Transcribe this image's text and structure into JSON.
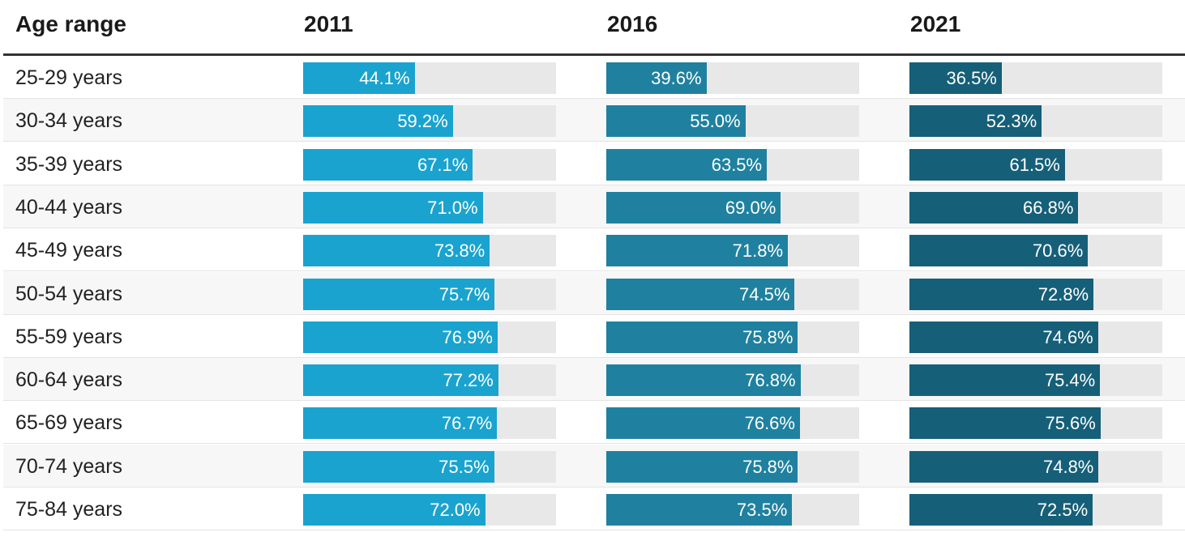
{
  "table": {
    "headers": {
      "age": "Age range",
      "years": [
        "2011",
        "2016",
        "2021"
      ]
    }
  },
  "chart_data": {
    "type": "table",
    "columns": [
      "Age range",
      "2011",
      "2016",
      "2021"
    ],
    "colors": [
      "#1aa3cf",
      "#1f819f",
      "#165f78"
    ],
    "track_color": "#e8e8e8",
    "xlim": [
      0,
      100
    ],
    "rows": [
      {
        "age": "25-29 years",
        "values": [
          44.1,
          39.6,
          36.5
        ],
        "labels": [
          "44.1%",
          "39.6%",
          "36.5%"
        ]
      },
      {
        "age": "30-34 years",
        "values": [
          59.2,
          55.0,
          52.3
        ],
        "labels": [
          "59.2%",
          "55.0%",
          "52.3%"
        ]
      },
      {
        "age": "35-39 years",
        "values": [
          67.1,
          63.5,
          61.5
        ],
        "labels": [
          "67.1%",
          "63.5%",
          "61.5%"
        ]
      },
      {
        "age": "40-44 years",
        "values": [
          71.0,
          69.0,
          66.8
        ],
        "labels": [
          "71.0%",
          "69.0%",
          "66.8%"
        ]
      },
      {
        "age": "45-49 years",
        "values": [
          73.8,
          71.8,
          70.6
        ],
        "labels": [
          "73.8%",
          "71.8%",
          "70.6%"
        ]
      },
      {
        "age": "50-54 years",
        "values": [
          75.7,
          74.5,
          72.8
        ],
        "labels": [
          "75.7%",
          "74.5%",
          "72.8%"
        ]
      },
      {
        "age": "55-59 years",
        "values": [
          76.9,
          75.8,
          74.6
        ],
        "labels": [
          "76.9%",
          "75.8%",
          "74.6%"
        ]
      },
      {
        "age": "60-64 years",
        "values": [
          77.2,
          76.8,
          75.4
        ],
        "labels": [
          "77.2%",
          "76.8%",
          "75.4%"
        ]
      },
      {
        "age": "65-69 years",
        "values": [
          76.7,
          76.6,
          75.6
        ],
        "labels": [
          "76.7%",
          "76.6%",
          "75.6%"
        ]
      },
      {
        "age": "70-74 years",
        "values": [
          75.5,
          75.8,
          74.8
        ],
        "labels": [
          "75.5%",
          "75.8%",
          "74.8%"
        ]
      },
      {
        "age": "75-84 years",
        "values": [
          72.0,
          73.5,
          72.5
        ],
        "labels": [
          "72.0%",
          "73.5%",
          "72.5%"
        ]
      }
    ]
  }
}
